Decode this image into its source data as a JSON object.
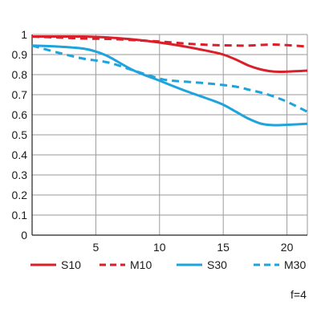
{
  "chart_data": {
    "type": "line",
    "xlim": [
      0,
      21.6
    ],
    "ylim": [
      0,
      1
    ],
    "x_ticks": [
      5,
      10,
      15,
      20
    ],
    "y_ticks": [
      0,
      0.1,
      0.2,
      0.3,
      0.4,
      0.5,
      0.6,
      0.7,
      0.8,
      0.9,
      1
    ],
    "y_tick_labels": [
      "0",
      "0.1",
      "0.2",
      "0.3",
      "0.4",
      "0.5",
      "0.6",
      "0.7",
      "0.8",
      "0.9",
      "1"
    ],
    "grid": true,
    "legend_position": "bottom",
    "annotation": "f=4",
    "series": [
      {
        "name": "S10",
        "color": "#d9202a",
        "dashed": false,
        "points": [
          [
            0,
            0.99
          ],
          [
            2,
            0.99
          ],
          [
            4,
            0.99
          ],
          [
            5,
            0.988
          ],
          [
            6,
            0.985
          ],
          [
            8,
            0.975
          ],
          [
            10,
            0.96
          ],
          [
            12,
            0.94
          ],
          [
            14,
            0.915
          ],
          [
            15,
            0.9
          ],
          [
            16,
            0.875
          ],
          [
            17,
            0.845
          ],
          [
            18,
            0.825
          ],
          [
            19,
            0.815
          ],
          [
            20,
            0.815
          ],
          [
            21.6,
            0.82
          ]
        ]
      },
      {
        "name": "M10",
        "color": "#d9202a",
        "dashed": true,
        "points": [
          [
            0,
            0.99
          ],
          [
            2,
            0.985
          ],
          [
            4,
            0.98
          ],
          [
            6,
            0.978
          ],
          [
            8,
            0.972
          ],
          [
            10,
            0.965
          ],
          [
            12,
            0.955
          ],
          [
            14,
            0.948
          ],
          [
            16,
            0.945
          ],
          [
            17,
            0.945
          ],
          [
            18,
            0.948
          ],
          [
            19,
            0.95
          ],
          [
            20,
            0.947
          ],
          [
            21.6,
            0.94
          ]
        ]
      },
      {
        "name": "S30",
        "color": "#1ea3dc",
        "dashed": false,
        "points": [
          [
            0,
            0.945
          ],
          [
            2,
            0.94
          ],
          [
            4,
            0.93
          ],
          [
            5,
            0.915
          ],
          [
            6,
            0.89
          ],
          [
            8,
            0.82
          ],
          [
            10,
            0.77
          ],
          [
            12,
            0.72
          ],
          [
            14,
            0.675
          ],
          [
            15,
            0.65
          ],
          [
            16,
            0.615
          ],
          [
            17,
            0.58
          ],
          [
            18,
            0.555
          ],
          [
            19,
            0.548
          ],
          [
            20,
            0.55
          ],
          [
            21.6,
            0.555
          ]
        ]
      },
      {
        "name": "M30",
        "color": "#1ea3dc",
        "dashed": true,
        "points": [
          [
            0,
            0.945
          ],
          [
            2,
            0.91
          ],
          [
            4,
            0.88
          ],
          [
            6,
            0.86
          ],
          [
            8,
            0.82
          ],
          [
            10,
            0.78
          ],
          [
            11,
            0.77
          ],
          [
            12,
            0.765
          ],
          [
            14,
            0.755
          ],
          [
            16,
            0.74
          ],
          [
            17,
            0.725
          ],
          [
            18,
            0.71
          ],
          [
            19,
            0.69
          ],
          [
            20,
            0.665
          ],
          [
            21.6,
            0.615
          ]
        ]
      }
    ]
  }
}
